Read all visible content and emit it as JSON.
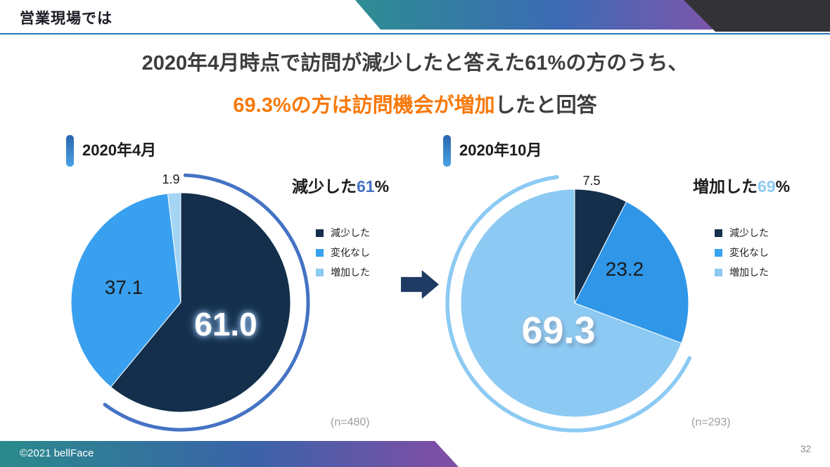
{
  "header": {
    "title": "営業現場では"
  },
  "headline": {
    "line1": "2020年4月時点で訪問が減少したと答えた61%の方のうち、",
    "line2_highlight": "69.3%の方は訪問機会が増加",
    "line2_rest": "したと回答",
    "highlight_color": "#F7790B"
  },
  "theme": {
    "rule_blue": "#2E74B5",
    "arrow_navy": "#1F3A63",
    "gray_shape": "#333337"
  },
  "legend": [
    {
      "label": "減少した",
      "color": "#14304E"
    },
    {
      "label": "変化なし",
      "color": "#36A2F0"
    },
    {
      "label": "増加した",
      "color": "#8CCAF3"
    }
  ],
  "charts": [
    {
      "month_label": "2020年4月",
      "callout": {
        "prefix": "減少した",
        "number": "61",
        "suffix": "%",
        "number_color": "#4472C4"
      },
      "sample_size": "(n=480)"
    },
    {
      "month_label": "2020年10月",
      "callout": {
        "prefix": "増加した",
        "number": "69",
        "suffix": "%",
        "number_color": "#8CCAF3"
      },
      "sample_size": "(n=293)"
    }
  ],
  "chart_data": [
    {
      "type": "pie",
      "title": "2020年4月",
      "categories": [
        "減少した",
        "変化なし",
        "増加した"
      ],
      "values": [
        61.0,
        37.1,
        1.9
      ],
      "labels": [
        "61.0",
        "37.1",
        "1.9"
      ],
      "colors": [
        "#132F4C",
        "#39A0EF",
        "#A5D5F5"
      ],
      "start_angle": 0,
      "direction": "clockwise",
      "highlight_arc": {
        "slice": "減少した",
        "color": "#4472C4"
      },
      "sample_size": 480
    },
    {
      "type": "pie",
      "title": "2020年10月",
      "categories": [
        "減少した",
        "変化なし",
        "増加した"
      ],
      "values": [
        7.5,
        23.2,
        69.3
      ],
      "labels": [
        "7.5",
        "23.2",
        "69.3"
      ],
      "colors": [
        "#132F4C",
        "#2F96E8",
        "#8CCAF3"
      ],
      "start_angle": 0,
      "direction": "clockwise",
      "highlight_arc": {
        "slice": "増加した",
        "color": "#8CCAF3"
      },
      "sample_size": 293
    }
  ],
  "footer": {
    "copyright": "©2021 bellFace",
    "page_number": "32"
  }
}
